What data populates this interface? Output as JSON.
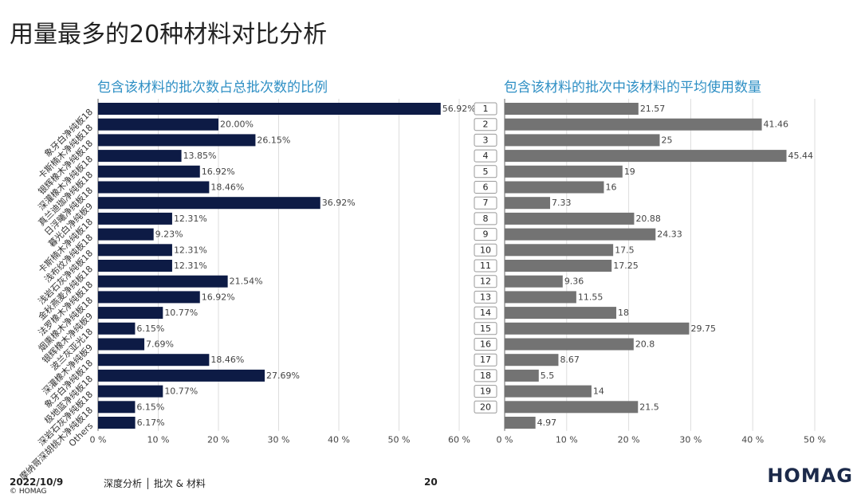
{
  "title": "用量最多的20种材料对比分析",
  "footer": {
    "date": "2022/10/9",
    "copyright": "© HOMAG",
    "section": "深度分析 │ 批次 & 材料",
    "page": "20",
    "logo": "HOMAG"
  },
  "colors": {
    "left": "#0d1b45",
    "right": "#737373"
  },
  "chart_data": [
    {
      "type": "bar",
      "orientation": "horizontal",
      "title": "包含该材料的批次数占总批次数的比例",
      "xlim": [
        0,
        60
      ],
      "xticks": [
        "0 %",
        "10 %",
        "20 %",
        "30 %",
        "40 %",
        "50 %",
        "60 %"
      ],
      "grid": true,
      "categories": [
        "象牙白净纯板18",
        "卡斯楠木净纯板18",
        "银辉橡木净纯板18",
        "深灌橡木净纯板18",
        "真兰迪珈净纯板18",
        "日浮曦净纯板18",
        "暮光白净纯板9",
        "卡斯楠木净纯板18",
        "浅布纹净纯板18",
        "浅岩石灰净纯板18",
        "金秋燕麦净纯板18",
        "法罗橡木净纯板18",
        "烟熏橡木净纯板18",
        "银辉橡木净纯板9",
        "波兰灰亚光18",
        "深灌橡木净纯板9",
        "象牙白净纯板18",
        "极地蓝净纯板18",
        "深岩石灰净纯板18",
        "摩纳哥深胡桃木净纯板18",
        "Others"
      ],
      "values": [
        56.92,
        20.0,
        26.15,
        13.85,
        16.92,
        18.46,
        36.92,
        12.31,
        9.23,
        12.31,
        12.31,
        21.54,
        16.92,
        10.77,
        6.15,
        7.69,
        18.46,
        27.69,
        10.77,
        6.15,
        6.17
      ],
      "labels": [
        "56.92%",
        "20.00%",
        "26.15%",
        "13.85%",
        "16.92%",
        "18.46%",
        "36.92%",
        "12.31%",
        "9.23%",
        "12.31%",
        "12.31%",
        "21.54%",
        "16.92%",
        "10.77%",
        "6.15%",
        "7.69%",
        "18.46%",
        "27.69%",
        "10.77%",
        "6.15%",
        "6.17%"
      ]
    },
    {
      "type": "bar",
      "orientation": "horizontal",
      "title": "包含该材料的批次中该材料的平均使用数量",
      "xlim": [
        0,
        50
      ],
      "xticks": [
        "0 %",
        "10 %",
        "20 %",
        "30 %",
        "40 %",
        "50 %"
      ],
      "grid": true,
      "categories": [
        "1",
        "2",
        "3",
        "4",
        "5",
        "6",
        "7",
        "8",
        "9",
        "10",
        "11",
        "12",
        "13",
        "14",
        "15",
        "16",
        "17",
        "18",
        "19",
        "20",
        ""
      ],
      "values": [
        21.57,
        41.46,
        25,
        45.44,
        19,
        16,
        7.33,
        20.88,
        24.33,
        17.5,
        17.25,
        9.36,
        11.55,
        18,
        29.75,
        20.8,
        8.67,
        5.5,
        14,
        21.5,
        4.97
      ],
      "labels": [
        "21.57",
        "41.46",
        "25",
        "45.44",
        "19",
        "16",
        "7.33",
        "20.88",
        "24.33",
        "17.5",
        "17.25",
        "9.36",
        "11.55",
        "18",
        "29.75",
        "20.8",
        "8.67",
        "5.5",
        "14",
        "21.5",
        "4.97"
      ]
    }
  ]
}
